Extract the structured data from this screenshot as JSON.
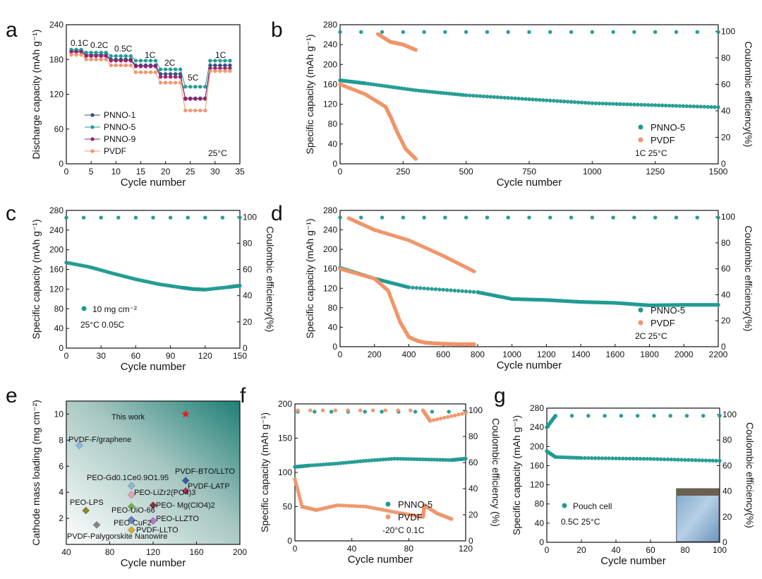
{
  "colors": {
    "teal": "#1f9a92",
    "orange": "#f0956a",
    "purple": "#9a1f6e",
    "navy": "#2f4e7a",
    "grid": "#000000"
  },
  "chart_data": [
    {
      "id": "a",
      "panel_letter": "a",
      "type": "line",
      "xlabel": "Cycle number",
      "ylabel": "Discharge capacity (mAh g⁻¹)",
      "xlim": [
        0,
        35
      ],
      "ylim": [
        0,
        240
      ],
      "xticks": [
        0,
        5,
        10,
        15,
        20,
        25,
        30,
        35
      ],
      "yticks": [
        0,
        60,
        120,
        180,
        240
      ],
      "annotations": [
        "0.1C",
        "0.2C",
        "0.5C",
        "1C",
        "2C",
        "5C",
        "1C",
        "25°C"
      ],
      "legend": {
        "position": "bottom-left",
        "entries": [
          "PNNO-1",
          "PNNO-5",
          "PNNO-9",
          "PVDF"
        ]
      },
      "steps": [
        [
          1,
          3
        ],
        [
          4,
          8
        ],
        [
          9,
          13
        ],
        [
          14,
          18
        ],
        [
          19,
          23
        ],
        [
          24,
          28
        ],
        [
          29,
          33
        ]
      ],
      "series": [
        {
          "name": "PNNO-1",
          "color": "#2f4e7a",
          "levels": [
            195,
            188,
            180,
            170,
            155,
            113,
            170
          ]
        },
        {
          "name": "PNNO-5",
          "color": "#1f9a92",
          "levels": [
            197,
            192,
            186,
            178,
            163,
            133,
            178
          ]
        },
        {
          "name": "PNNO-9",
          "color": "#9a1f6e",
          "levels": [
            193,
            186,
            178,
            168,
            150,
            112,
            165
          ]
        },
        {
          "name": "PVDF",
          "color": "#f0956a",
          "levels": [
            188,
            180,
            170,
            158,
            140,
            92,
            160
          ]
        }
      ]
    },
    {
      "id": "b",
      "panel_letter": "b",
      "type": "scatter",
      "xlabel": "Cycle number",
      "ylabel": "Specific capacity (mAh g⁻¹)",
      "y2label": "Coulombic efficiency(%)",
      "xlim": [
        0,
        1500
      ],
      "ylim": [
        0,
        280
      ],
      "y2lim": [
        0,
        105
      ],
      "xticks": [
        0,
        250,
        500,
        750,
        1000,
        1250,
        1500
      ],
      "yticks": [
        0,
        40,
        80,
        120,
        160,
        200,
        240,
        280
      ],
      "y2ticks": [
        0,
        20,
        40,
        60,
        80,
        100
      ],
      "annotations": [
        "1C 25°C"
      ],
      "legend": {
        "position": "right",
        "entries": [
          "PNNO-5",
          "PVDF"
        ]
      },
      "series": [
        {
          "name": "PNNO-5",
          "kind": "capacity",
          "color": "#1f9a92",
          "x": [
            0,
            100,
            300,
            500,
            750,
            1000,
            1250,
            1500
          ],
          "y": [
            168,
            162,
            148,
            138,
            130,
            122,
            118,
            114
          ]
        },
        {
          "name": "PVDF",
          "kind": "capacity",
          "color": "#f0956a",
          "x": [
            0,
            100,
            180,
            200,
            230,
            260,
            300
          ],
          "y": [
            160,
            140,
            115,
            95,
            60,
            30,
            10
          ]
        },
        {
          "name": "PNNO-5",
          "kind": "efficiency",
          "color": "#1f9a92",
          "x": [
            0,
            1500
          ],
          "y": [
            99.5,
            99.5
          ]
        },
        {
          "name": "PVDF",
          "kind": "efficiency",
          "color": "#f0956a",
          "x": [
            150,
            200,
            250,
            300
          ],
          "y": [
            98,
            92,
            90,
            86
          ]
        }
      ]
    },
    {
      "id": "c",
      "panel_letter": "c",
      "type": "scatter",
      "xlabel": "Cycle number",
      "ylabel": "Specific capacity (mAh g⁻¹)",
      "y2label": "Coulombic efficiency(%)",
      "xlim": [
        0,
        150
      ],
      "ylim": [
        0,
        280
      ],
      "y2lim": [
        0,
        105
      ],
      "xticks": [
        0,
        30,
        60,
        90,
        120,
        150
      ],
      "yticks": [
        0,
        40,
        80,
        120,
        160,
        200,
        240,
        280
      ],
      "y2ticks": [
        0,
        20,
        40,
        60,
        80,
        100
      ],
      "annotations": [
        "25°C 0.05C"
      ],
      "legend": {
        "position": "left",
        "entries": [
          "10 mg cm⁻²"
        ]
      },
      "series": [
        {
          "name": "10 mg cm⁻²",
          "kind": "capacity",
          "color": "#1f9a92",
          "x": [
            0,
            20,
            40,
            60,
            80,
            100,
            110,
            120,
            140,
            150
          ],
          "y": [
            174,
            165,
            152,
            140,
            130,
            123,
            120,
            119,
            124,
            127
          ]
        },
        {
          "name": "10 mg cm⁻²",
          "kind": "efficiency",
          "color": "#1f9a92",
          "x": [
            0,
            150
          ],
          "y": [
            99.5,
            99.5
          ]
        }
      ]
    },
    {
      "id": "d",
      "panel_letter": "d",
      "type": "scatter",
      "xlabel": "Cycle number",
      "ylabel": "Specific capacity (mAh g⁻¹)",
      "y2label": "Coulombic efficiency(%)",
      "xlim": [
        0,
        2200
      ],
      "ylim": [
        0,
        280
      ],
      "y2lim": [
        0,
        105
      ],
      "xticks": [
        0,
        200,
        400,
        600,
        800,
        1000,
        1200,
        1400,
        1600,
        1800,
        2000,
        2200
      ],
      "yticks": [
        0,
        40,
        80,
        120,
        160,
        200,
        240,
        280
      ],
      "y2ticks": [
        0,
        20,
        40,
        60,
        80,
        100
      ],
      "annotations": [
        "2C 25°C"
      ],
      "legend": {
        "position": "right",
        "entries": [
          "PNNO-5",
          "PVDF"
        ]
      },
      "series": [
        {
          "name": "PNNO-5",
          "kind": "capacity",
          "color": "#1f9a92",
          "x": [
            0,
            200,
            400,
            800,
            1000,
            1200,
            1400,
            1600,
            1800,
            2000,
            2200
          ],
          "y": [
            162,
            140,
            122,
            112,
            98,
            96,
            92,
            90,
            85,
            86,
            86
          ]
        },
        {
          "name": "PVDF",
          "kind": "capacity",
          "color": "#f0956a",
          "x": [
            0,
            200,
            280,
            350,
            400,
            450,
            500,
            600,
            700,
            780
          ],
          "y": [
            160,
            140,
            115,
            50,
            20,
            12,
            8,
            6,
            5,
            5
          ]
        },
        {
          "name": "PNNO-5",
          "kind": "efficiency",
          "color": "#1f9a92",
          "x": [
            0,
            2200
          ],
          "y": [
            99.5,
            99.5
          ]
        },
        {
          "name": "PVDF",
          "kind": "efficiency",
          "color": "#f0956a",
          "x": [
            50,
            200,
            400,
            600,
            780
          ],
          "y": [
            99,
            90,
            82,
            70,
            58
          ]
        }
      ]
    },
    {
      "id": "e",
      "panel_letter": "e",
      "type": "scatter",
      "xlabel": "Cycle number",
      "ylabel": "Cathode mass loading (mg cm⁻²)",
      "xlim": [
        40,
        200
      ],
      "ylim": [
        0,
        11
      ],
      "xticks": [
        40,
        80,
        120,
        160,
        200
      ],
      "yticks": [
        2,
        4,
        6,
        8,
        10
      ],
      "points": [
        {
          "label": "This work",
          "x": 150,
          "y": 10,
          "color": "#e02020"
        },
        {
          "label": "PVDF-F/graphene",
          "x": 52,
          "y": 7.6,
          "color": "#8fb8d8"
        },
        {
          "label": "PVDF-BTO/LLTO",
          "x": 150,
          "y": 4.9,
          "color": "#2f5fa0"
        },
        {
          "label": "PVDF-LATP",
          "x": 150,
          "y": 4.1,
          "color": "#c0306a"
        },
        {
          "label": "PEO-Gd0.1Ce0.9O1.95",
          "x": 100,
          "y": 4.5,
          "color": "#8fb8d8"
        },
        {
          "label": "PEO-LiZr2(PO4)3",
          "x": 100,
          "y": 3.8,
          "color": "#f4a0b0"
        },
        {
          "label": "PEO- Mg(ClO4)2",
          "x": 120,
          "y": 3.0,
          "color": "#8a3030"
        },
        {
          "label": "PEO-LPS",
          "x": 58,
          "y": 2.6,
          "color": "#8a8a20"
        },
        {
          "label": "PEO-UiO-66",
          "x": 100,
          "y": 2.9,
          "color": "#7ab040"
        },
        {
          "label": "PEO-LLZTO",
          "x": 120,
          "y": 1.8,
          "color": "#c070d0"
        },
        {
          "label": "PEO-CuF2",
          "x": 100,
          "y": 1.9,
          "color": "#6080d0"
        },
        {
          "label": "PVDF-LLTO",
          "x": 100,
          "y": 1.1,
          "color": "#d8b020"
        },
        {
          "label": "PVDF-Palygorskite Nanowire",
          "x": 68,
          "y": 1.5,
          "color": "#888888"
        }
      ]
    },
    {
      "id": "f",
      "panel_letter": "f",
      "type": "scatter",
      "xlabel": "Cycle number",
      "ylabel": "Specific capacity (mAh g⁻¹)",
      "y2label": "Coulombic efficiency (%)",
      "xlim": [
        0,
        120
      ],
      "ylim": [
        0,
        200
      ],
      "y2lim": [
        0,
        105
      ],
      "xticks": [
        0,
        40,
        80,
        120
      ],
      "yticks": [
        0,
        50,
        100,
        150,
        200
      ],
      "y2ticks": [
        0,
        20,
        40,
        60,
        80,
        100
      ],
      "annotations": [
        "-20°C 0.1C"
      ],
      "legend": {
        "position": "right",
        "entries": [
          "PNNO-5",
          "PVDF"
        ]
      },
      "series": [
        {
          "name": "PNNO-5",
          "kind": "capacity",
          "color": "#1f9a92",
          "x": [
            0,
            10,
            30,
            50,
            70,
            90,
            110,
            120
          ],
          "y": [
            108,
            110,
            113,
            117,
            120,
            119,
            118,
            120
          ]
        },
        {
          "name": "PVDF",
          "kind": "capacity",
          "color": "#f0956a",
          "x": [
            0,
            5,
            15,
            30,
            50,
            70,
            90,
            91,
            100,
            110
          ],
          "y": [
            90,
            50,
            45,
            52,
            50,
            42,
            35,
            52,
            40,
            32
          ]
        },
        {
          "name": "PNNO-5",
          "kind": "efficiency",
          "color": "#1f9a92",
          "x": [
            2,
            120
          ],
          "y": [
            99,
            99
          ]
        },
        {
          "name": "PVDF",
          "kind": "efficiency",
          "color": "#f0956a",
          "x": [
            2,
            90,
            95,
            120
          ],
          "y": [
            100,
            100,
            92,
            98
          ]
        }
      ]
    },
    {
      "id": "g",
      "panel_letter": "g",
      "type": "scatter",
      "xlabel": "Cycle number",
      "ylabel": "Specific capacity (mAh g⁻¹)",
      "y2label": "Coulombic efficiency(%)",
      "xlim": [
        0,
        100
      ],
      "ylim": [
        0,
        280
      ],
      "y2lim": [
        0,
        105
      ],
      "xticks": [
        0,
        20,
        40,
        60,
        80,
        100
      ],
      "yticks": [
        0,
        40,
        80,
        120,
        160,
        200,
        240,
        280
      ],
      "y2ticks": [
        0,
        20,
        40,
        60,
        80,
        100
      ],
      "annotations": [
        "0.5C 25°C"
      ],
      "legend": {
        "position": "left",
        "entries": [
          "Pouch cell"
        ]
      },
      "series": [
        {
          "name": "Pouch cell",
          "kind": "capacity",
          "color": "#1f9a92",
          "x": [
            0,
            5,
            20,
            40,
            60,
            80,
            100
          ],
          "y": [
            190,
            178,
            176,
            175,
            174,
            172,
            170
          ]
        },
        {
          "name": "Pouch cell",
          "kind": "efficiency",
          "color": "#1f9a92",
          "x": [
            0,
            5,
            100
          ],
          "y": [
            90,
            99,
            99
          ]
        }
      ]
    }
  ]
}
